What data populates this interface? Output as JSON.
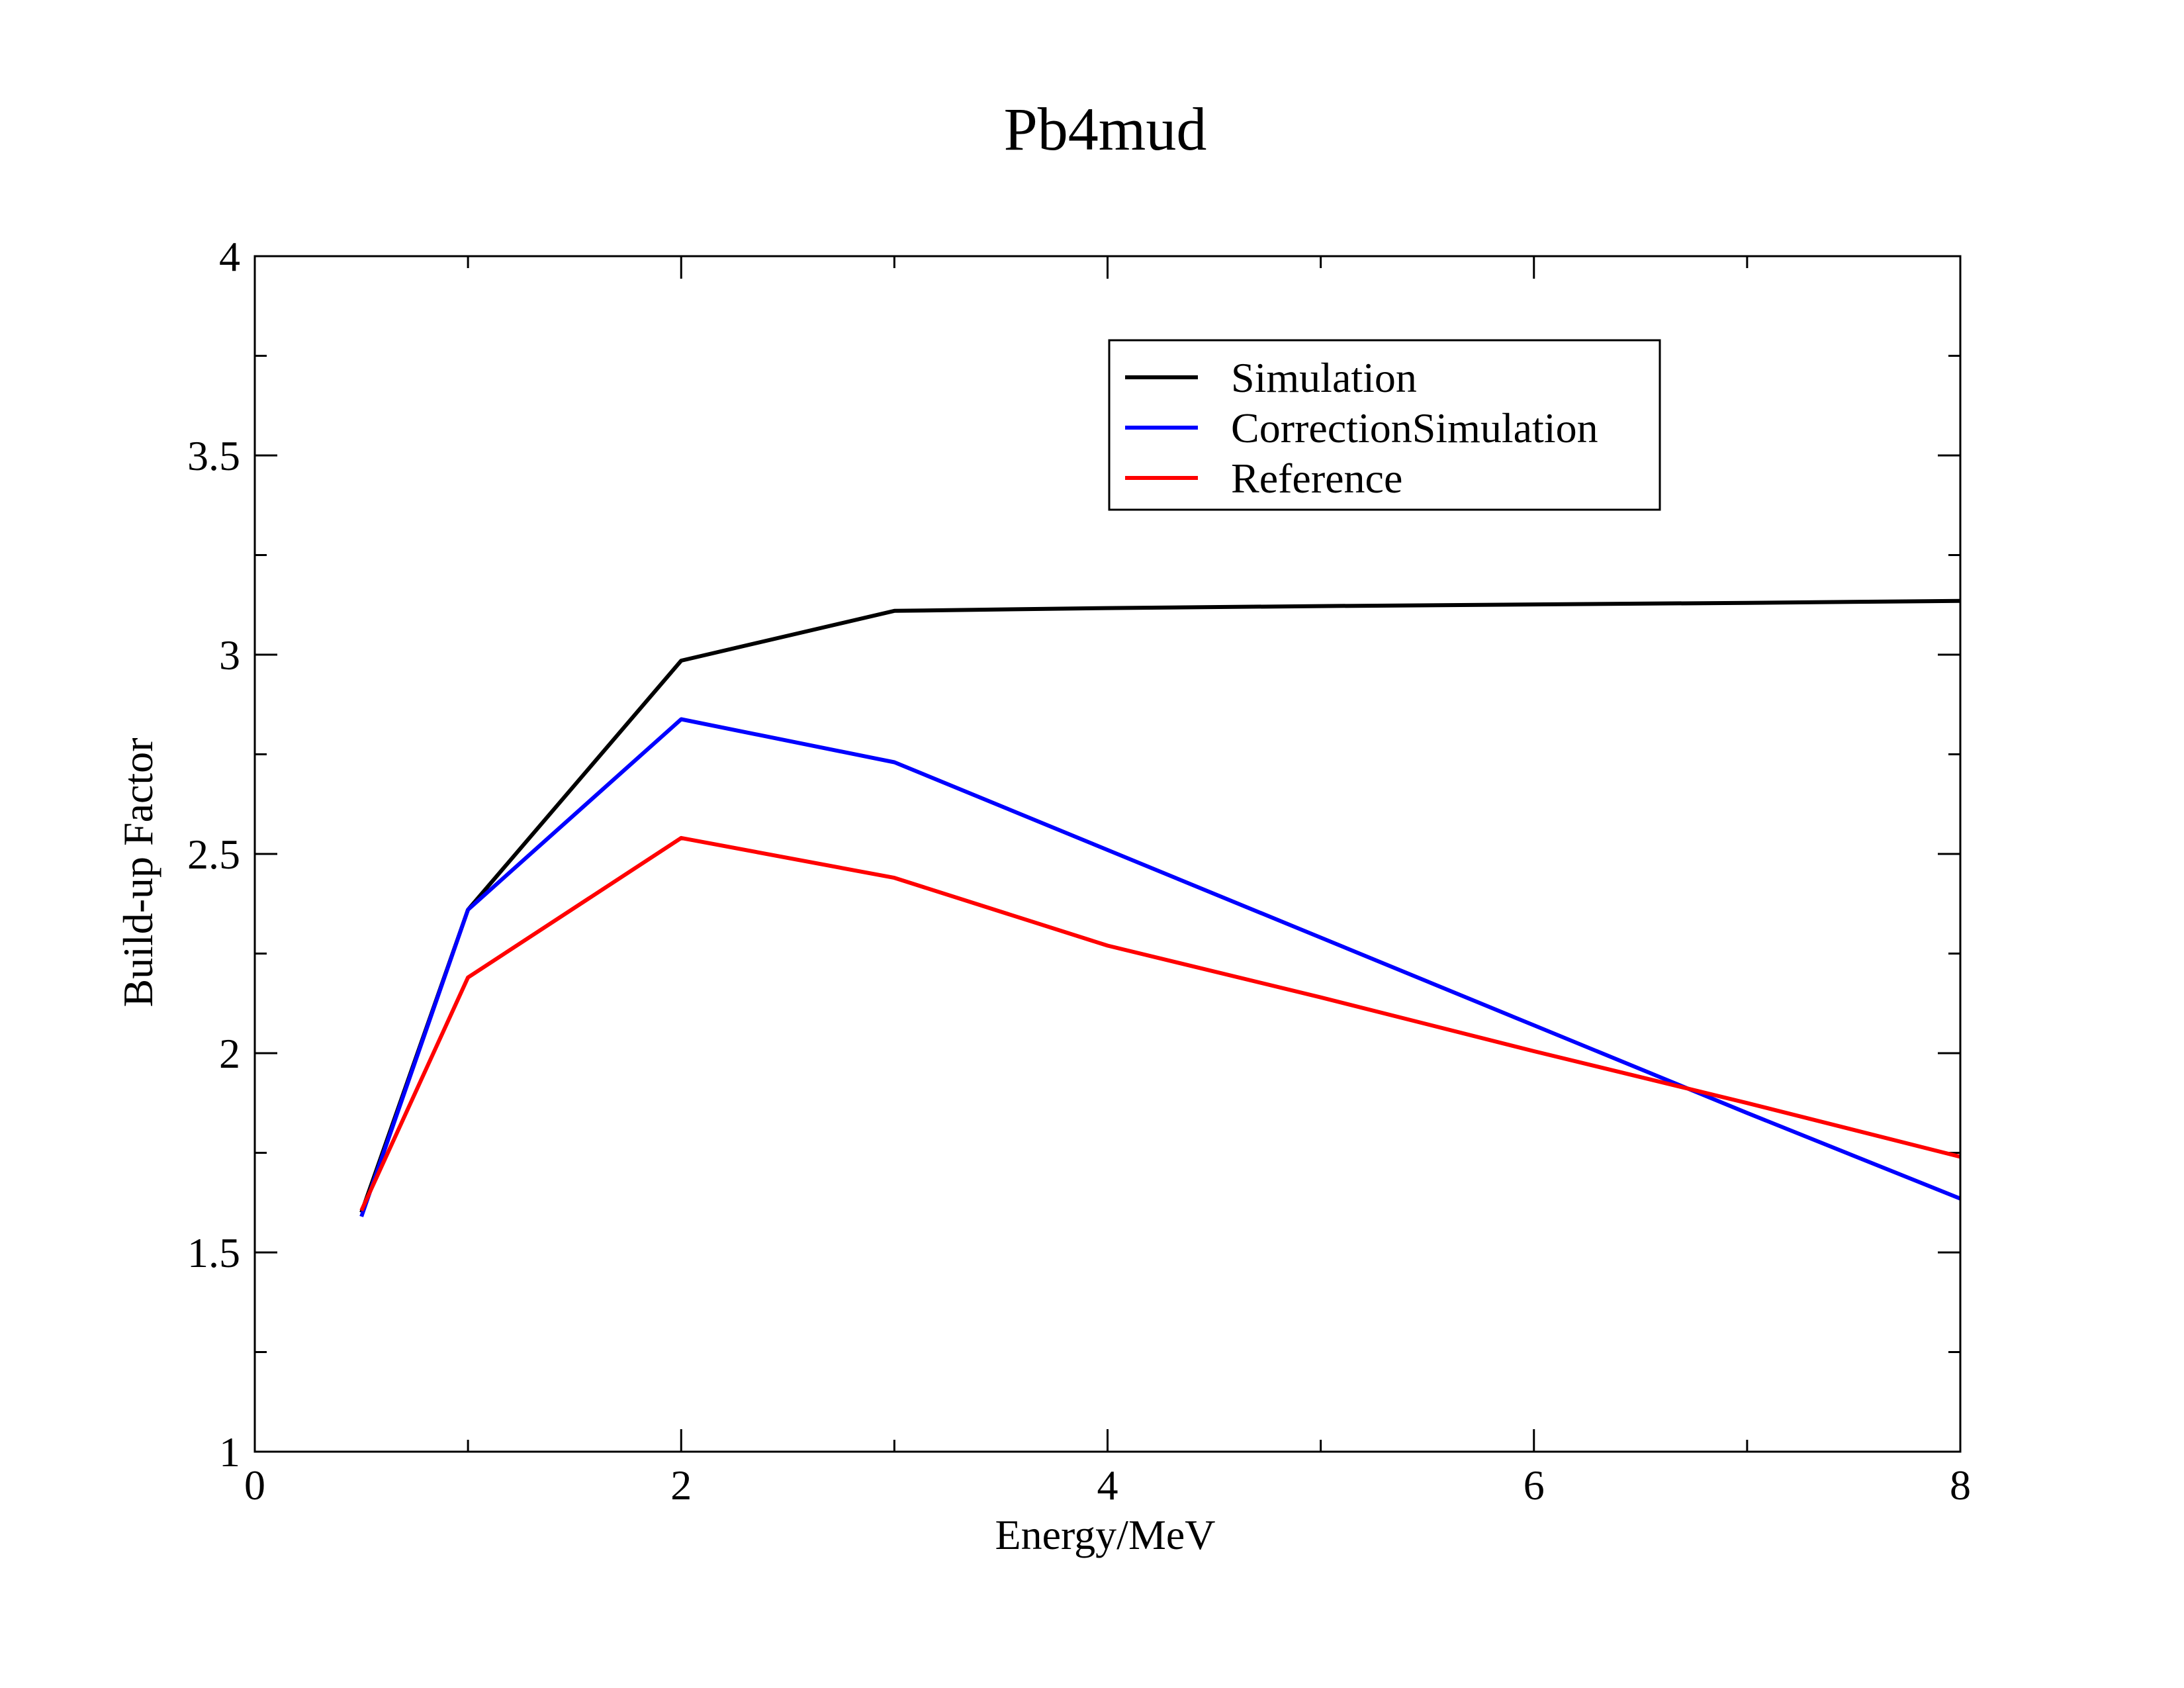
{
  "chart_data": {
    "type": "line",
    "title": "Pb4mud",
    "xlabel": "Energy/MeV",
    "ylabel": "Build-up Factor",
    "xlim": [
      0,
      8
    ],
    "ylim": [
      1,
      4
    ],
    "xticks": [
      0,
      2,
      4,
      6,
      8
    ],
    "xtick_labels": [
      "0",
      "2",
      "4",
      "6",
      "8"
    ],
    "yticks": [
      1,
      1.5,
      2,
      2.5,
      3,
      3.5,
      4
    ],
    "ytick_labels": [
      "1",
      "1.5",
      "2",
      "2.5",
      "3",
      "3.5",
      "4"
    ],
    "grid": false,
    "legend_position": "top-right",
    "series": [
      {
        "name": "Simulation",
        "color": "#000000",
        "x": [
          0.5,
          1,
          2,
          3,
          4,
          5,
          6,
          7,
          8
        ],
        "y": [
          1.6,
          2.36,
          2.985,
          3.11,
          3.117,
          3.122,
          3.126,
          3.13,
          3.135
        ]
      },
      {
        "name": "CorrectionSimulation",
        "color": "#0000ff",
        "x": [
          0.5,
          1,
          2,
          3,
          4,
          5,
          6,
          7,
          8
        ],
        "y": [
          1.59,
          2.36,
          2.838,
          2.73,
          2.51,
          2.29,
          2.07,
          1.85,
          1.635
        ]
      },
      {
        "name": "Reference",
        "color": "#ff0000",
        "x": [
          0.5,
          1,
          2,
          3,
          4,
          5,
          6,
          7,
          8
        ],
        "y": [
          1.605,
          2.19,
          2.54,
          2.44,
          2.27,
          2.14,
          2.005,
          1.875,
          1.74
        ]
      }
    ]
  }
}
